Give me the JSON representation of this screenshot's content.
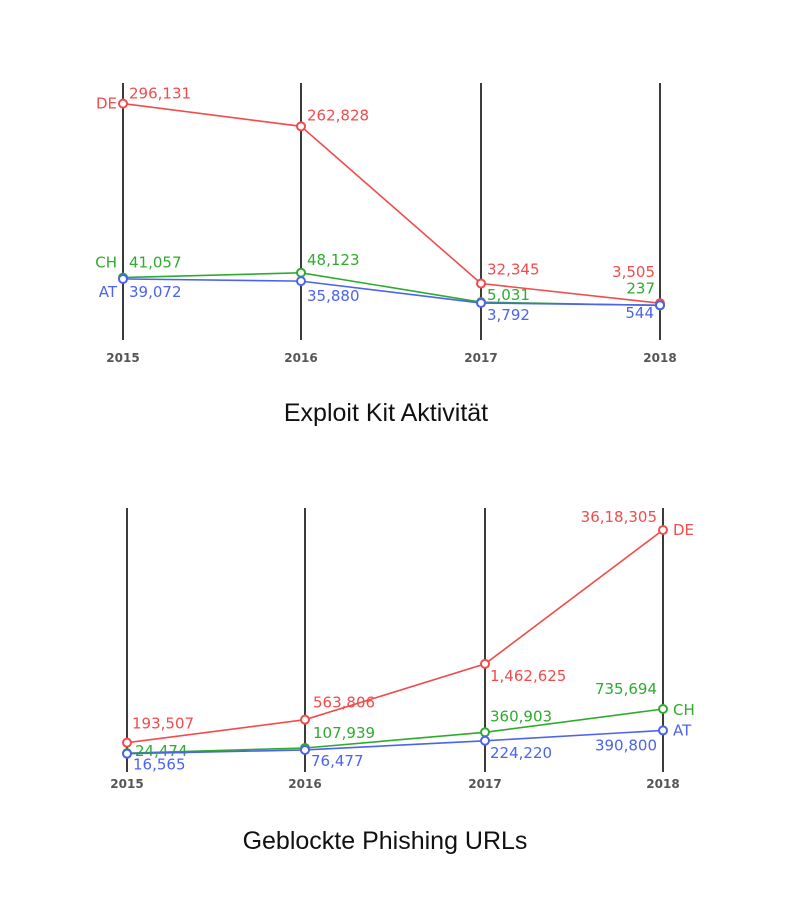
{
  "chart_data": [
    {
      "type": "line",
      "title": "Exploit Kit Aktivität",
      "categories": [
        "2015",
        "2016",
        "2017",
        "2018"
      ],
      "colors": {
        "DE": "#f24b4b",
        "CH": "#2eab2e",
        "AT": "#4b63ee"
      },
      "series": [
        {
          "name": "DE",
          "values": [
            296131,
            262828,
            32345,
            3505
          ],
          "labels": [
            "296,131",
            "262,828",
            "32,345",
            "3,505"
          ]
        },
        {
          "name": "CH",
          "values": [
            41057,
            48123,
            5031,
            237
          ],
          "labels": [
            "41,057",
            "48,123",
            "5,031",
            "237"
          ]
        },
        {
          "name": "AT",
          "values": [
            39072,
            35880,
            3792,
            544
          ],
          "labels": [
            "39,072",
            "35,880",
            "3,792",
            "544"
          ]
        }
      ]
    },
    {
      "type": "line",
      "title": "Geblockte Phishing URLs",
      "categories": [
        "2015",
        "2016",
        "2017",
        "2018"
      ],
      "colors": {
        "DE": "#f24b4b",
        "CH": "#2eab2e",
        "AT": "#4b63ee"
      },
      "series": [
        {
          "name": "DE",
          "values": [
            193507,
            563806,
            1462625,
            3618305
          ],
          "labels": [
            "193,507",
            "563,806",
            "1,462,625",
            "36,18,305"
          ]
        },
        {
          "name": "CH",
          "values": [
            24474,
            107939,
            360903,
            735694
          ],
          "labels": [
            "24,474",
            "107,939",
            "360,903",
            "735,694"
          ]
        },
        {
          "name": "AT",
          "values": [
            16565,
            76477,
            224220,
            390800
          ],
          "labels": [
            "16,565",
            "76,477",
            "224,220",
            "390,800"
          ]
        }
      ]
    }
  ]
}
